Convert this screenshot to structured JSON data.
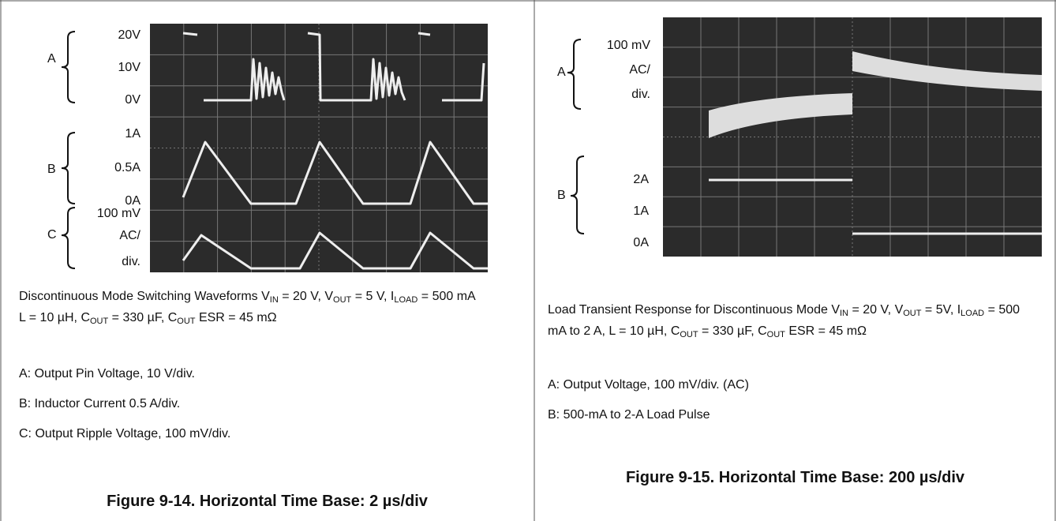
{
  "figures": [
    {
      "scope_labels": [
        {
          "channel": "A",
          "levels": [
            "20V",
            "10V",
            "0V"
          ]
        },
        {
          "channel": "B",
          "levels": [
            "1A",
            "0.5A",
            "0A"
          ]
        },
        {
          "channel": "C",
          "levels": [
            "100 mV",
            "AC/",
            "div."
          ]
        }
      ],
      "caption": [
        {
          "text": "Discontinuous Mode Switching Waveforms V"
        },
        {
          "sub": "IN"
        },
        {
          "text": " = 20 V, V"
        },
        {
          "sub": "OUT"
        },
        {
          "text": " = 5 V, I"
        },
        {
          "sub": "LOAD"
        },
        {
          "text": " = 500 mA L = 10 µH, C"
        },
        {
          "sub": "OUT"
        },
        {
          "text": " = 330 µF, C"
        },
        {
          "sub": "OUT"
        },
        {
          "text": " ESR = 45 mΩ"
        }
      ],
      "notes": [
        "A: Output Pin Voltage, 10 V/div.",
        "B: Inductor Current 0.5 A/div.",
        "C: Output Ripple Voltage, 100 mV/div."
      ],
      "title": "Figure 9-14. Horizontal Time Base: 2 µs/div"
    },
    {
      "scope_labels": [
        {
          "channel": "A",
          "levels": [
            "100 mV",
            "AC/",
            "div."
          ]
        },
        {
          "channel": "B",
          "levels": [
            "2A",
            "1A",
            "0A"
          ]
        }
      ],
      "caption": [
        {
          "text": "Load Transient Response for Discontinuous Mode V"
        },
        {
          "sub": "IN"
        },
        {
          "text": " = 20 V, V"
        },
        {
          "sub": "OUT"
        },
        {
          "text": " = 5V, I"
        },
        {
          "sub": "LOAD"
        },
        {
          "text": " = 500 mA to 2 A, L = 10 µH, C"
        },
        {
          "sub": "OUT"
        },
        {
          "text": " = 330 µF, C"
        },
        {
          "sub": "OUT"
        },
        {
          "text": " ESR = 45 mΩ"
        }
      ],
      "notes": [
        "A: Output Voltage, 100 mV/div. (AC)",
        "B: 500-mA to 2-A Load Pulse"
      ],
      "title": "Figure 9-15. Horizontal Time Base: 200 µs/div"
    }
  ]
}
